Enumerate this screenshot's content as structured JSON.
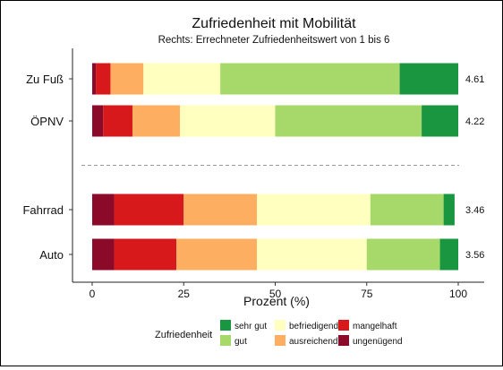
{
  "chart_data": {
    "type": "bar",
    "orientation": "horizontal",
    "stacked": true,
    "title": "Zufriedenheit mit Mobilität",
    "subtitle": "Rechts: Errechneter Zufriedenheitswert von 1 bis 6",
    "xlabel": "Prozent (%)",
    "ylabel": "",
    "xlim": [
      0,
      100
    ],
    "xticks": [
      0,
      25,
      50,
      75,
      100
    ],
    "categories": [
      "Zu Fuß",
      "ÖPNV",
      "Fahrrad",
      "Auto"
    ],
    "group_separator_after": "ÖPNV",
    "scores": [
      "4.61",
      "4.22",
      "3.46",
      "3.56"
    ],
    "series": [
      {
        "name": "ungenügend",
        "color": "#8b0a2a",
        "values": [
          1,
          3,
          6,
          6
        ]
      },
      {
        "name": "mangelhaft",
        "color": "#d7191c",
        "values": [
          4,
          8,
          19,
          17
        ]
      },
      {
        "name": "ausreichend",
        "color": "#fdae61",
        "values": [
          9,
          13,
          20,
          22
        ]
      },
      {
        "name": "befriedigend",
        "color": "#ffffbf",
        "values": [
          21,
          26,
          31,
          30
        ]
      },
      {
        "name": "gut",
        "color": "#a6d96a",
        "values": [
          49,
          40,
          20,
          20
        ]
      },
      {
        "name": "sehr gut",
        "color": "#1a9641",
        "values": [
          16,
          10,
          3,
          5
        ]
      }
    ],
    "legend": {
      "title": "Zufriedenheit",
      "position": "bottom",
      "order": [
        "sehr gut",
        "gut",
        "befriedigend",
        "ausreichend",
        "mangelhaft",
        "ungenügend"
      ]
    }
  }
}
